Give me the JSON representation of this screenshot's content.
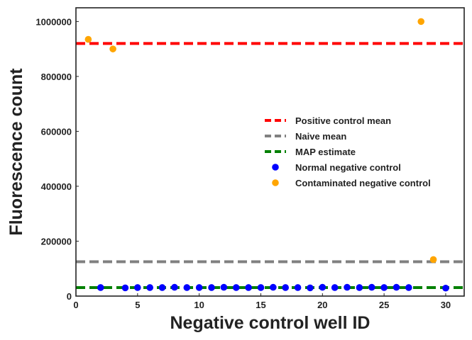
{
  "chart_data": {
    "type": "scatter",
    "title": "",
    "xlabel": "Negative control well ID",
    "ylabel": "Fluorescence count",
    "xlim": [
      0,
      31.5
    ],
    "ylim": [
      0,
      1050000
    ],
    "xticks": [
      0,
      5,
      10,
      15,
      20,
      25,
      30
    ],
    "yticks": [
      0,
      200000,
      400000,
      600000,
      800000,
      1000000
    ],
    "grid": false,
    "legend_position": "center-right",
    "lines": [
      {
        "name": "Positive control mean",
        "y": 920000,
        "color": "#ff0000",
        "style": "dashed"
      },
      {
        "name": "Naive mean",
        "y": 125000,
        "color": "#808080",
        "style": "dashed"
      },
      {
        "name": "MAP estimate",
        "y": 31000,
        "color": "#008000",
        "style": "dashed"
      }
    ],
    "series": [
      {
        "name": "Normal negative control",
        "color": "#0000ff",
        "x": [
          2,
          4,
          5,
          6,
          7,
          8,
          9,
          10,
          11,
          12,
          13,
          14,
          15,
          16,
          17,
          18,
          19,
          20,
          21,
          22,
          23,
          24,
          25,
          26,
          27,
          30
        ],
        "y": [
          31000,
          30000,
          31000,
          31000,
          31000,
          32000,
          31000,
          31000,
          31000,
          32000,
          31000,
          31000,
          31000,
          32000,
          31000,
          31000,
          30000,
          32000,
          31000,
          32000,
          31000,
          32000,
          31000,
          32000,
          31000,
          29000
        ]
      },
      {
        "name": "Contaminated negative control",
        "color": "#ffa500",
        "x": [
          1,
          3,
          28,
          29
        ],
        "y": [
          935000,
          900000,
          1000000,
          133000
        ]
      }
    ]
  }
}
